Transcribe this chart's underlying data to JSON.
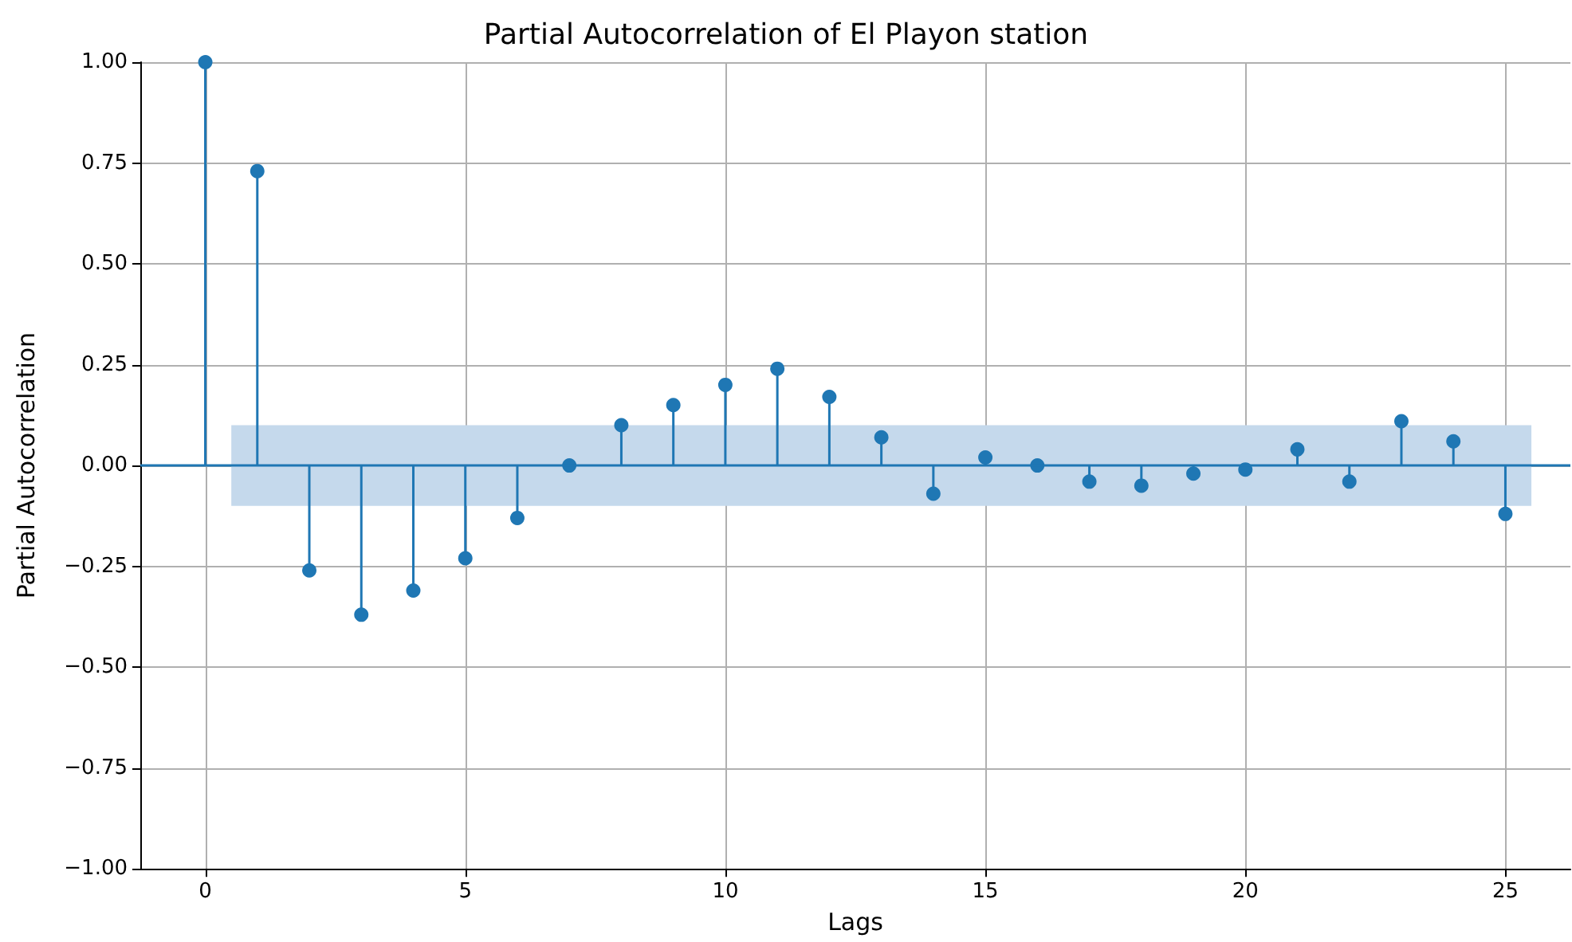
{
  "chart_data": {
    "type": "lollipop",
    "title": "Partial Autocorrelation of El Playon station",
    "xlabel": "Lags",
    "ylabel": "Partial Autocorrelation",
    "x": [
      0,
      1,
      2,
      3,
      4,
      5,
      6,
      7,
      8,
      9,
      10,
      11,
      12,
      13,
      14,
      15,
      16,
      17,
      18,
      19,
      20,
      21,
      22,
      23,
      24,
      25
    ],
    "values": [
      1.0,
      0.73,
      -0.26,
      -0.37,
      -0.31,
      -0.23,
      -0.13,
      0.0,
      0.1,
      0.15,
      0.2,
      0.24,
      0.17,
      0.07,
      -0.07,
      0.02,
      0.0,
      -0.04,
      -0.05,
      -0.02,
      -0.01,
      0.04,
      -0.04,
      0.11,
      0.06,
      -0.12
    ],
    "color": "#1f77b4",
    "marker": "circle",
    "bands": [
      {
        "axis": "y",
        "from": -0.1,
        "to": 0.1,
        "color": "#c5d9ec"
      }
    ],
    "ref_lines": [
      {
        "axis": "y",
        "value": 0,
        "color": "#1f77b4"
      }
    ],
    "xlim": [
      -1.25,
      26.25
    ],
    "xticks": [
      0,
      5,
      10,
      15,
      20,
      25
    ],
    "ylim": [
      -1,
      1
    ],
    "yticks": [
      {
        "value": -1,
        "label": "−1.00"
      },
      {
        "value": -0.75,
        "label": "−0.75"
      },
      {
        "value": -0.5,
        "label": "−0.50"
      },
      {
        "value": -0.25,
        "label": "−0.25"
      },
      {
        "value": 0,
        "label": "0.00"
      },
      {
        "value": 0.25,
        "label": "0.25"
      },
      {
        "value": 0.5,
        "label": "0.50"
      },
      {
        "value": 0.75,
        "label": "0.75"
      },
      {
        "value": 1,
        "label": "1.00"
      }
    ],
    "grid": true
  }
}
